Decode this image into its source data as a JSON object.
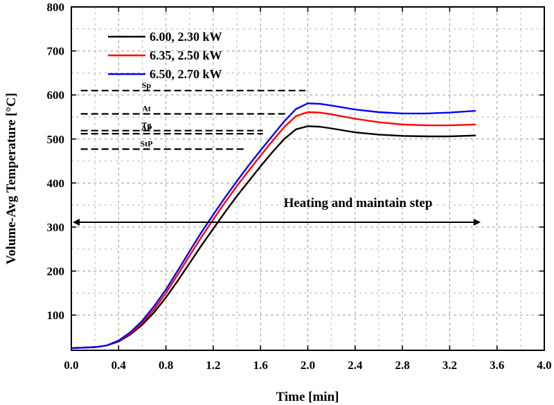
{
  "chart_data": {
    "type": "line",
    "title": "",
    "xlabel": "Time [min]",
    "ylabel": "Volume-Avg Temperature [°C]",
    "xlim": [
      0.0,
      4.0
    ],
    "ylim": [
      20,
      800
    ],
    "xticks": [
      "0.0",
      "0.4",
      "0.8",
      "1.2",
      "1.6",
      "2.0",
      "2.4",
      "2.8",
      "3.2",
      "3.6",
      "4.0"
    ],
    "yticks": [
      "100",
      "200",
      "300",
      "400",
      "500",
      "600",
      "700",
      "800"
    ],
    "grid": true,
    "legend_position": "top-left",
    "series": [
      {
        "name": "6.00, 2.30 kW",
        "color": "#000000",
        "x": [
          0.0,
          0.2,
          0.3,
          0.4,
          0.5,
          0.6,
          0.7,
          0.8,
          0.9,
          1.0,
          1.1,
          1.2,
          1.3,
          1.4,
          1.5,
          1.6,
          1.7,
          1.8,
          1.9,
          2.0,
          2.1,
          2.2,
          2.4,
          2.6,
          2.8,
          3.0,
          3.2,
          3.42
        ],
        "y": [
          25,
          27,
          31,
          40,
          56,
          78,
          106,
          140,
          178,
          218,
          258,
          296,
          334,
          370,
          404,
          438,
          470,
          500,
          522,
          529,
          528,
          524,
          515,
          510,
          507,
          506,
          506,
          508
        ]
      },
      {
        "name": "6.35, 2.50 kW",
        "color": "#ff0000",
        "x": [
          0.0,
          0.2,
          0.3,
          0.4,
          0.5,
          0.6,
          0.7,
          0.8,
          0.9,
          1.0,
          1.1,
          1.2,
          1.3,
          1.4,
          1.5,
          1.6,
          1.7,
          1.8,
          1.9,
          2.0,
          2.1,
          2.2,
          2.4,
          2.6,
          2.8,
          3.0,
          3.2,
          3.42
        ],
        "y": [
          25,
          27,
          31,
          41,
          58,
          82,
          113,
          150,
          192,
          235,
          277,
          317,
          356,
          393,
          428,
          462,
          495,
          527,
          552,
          561,
          560,
          556,
          546,
          538,
          533,
          531,
          531,
          533
        ]
      },
      {
        "name": "6.50, 2.70 kW",
        "color": "#0000ff",
        "x": [
          0.0,
          0.2,
          0.3,
          0.4,
          0.5,
          0.6,
          0.7,
          0.8,
          0.9,
          1.0,
          1.1,
          1.2,
          1.3,
          1.4,
          1.5,
          1.6,
          1.7,
          1.8,
          1.9,
          2.0,
          2.1,
          2.2,
          2.4,
          2.6,
          2.8,
          3.0,
          3.2,
          3.42
        ],
        "y": [
          25,
          27,
          31,
          42,
          61,
          87,
          120,
          158,
          201,
          245,
          288,
          328,
          367,
          404,
          440,
          474,
          507,
          540,
          568,
          581,
          580,
          576,
          567,
          561,
          558,
          558,
          560,
          564
        ]
      }
    ],
    "reference_lines": [
      {
        "label": "Sp",
        "y": 610,
        "x_end": 1.98
      },
      {
        "label": "At",
        "y": 557,
        "x_end": 1.82
      },
      {
        "label": "Tg",
        "y": 519,
        "x_end": 1.62
      },
      {
        "label": "AP",
        "y": 512,
        "x_end": 1.62
      },
      {
        "label": "StP",
        "y": 477,
        "x_end": 1.47
      }
    ],
    "annotation": {
      "text": "Heating and maintain step",
      "arrow_y": 311,
      "arrow_x_start": 0.0,
      "arrow_x_end": 3.45
    }
  }
}
